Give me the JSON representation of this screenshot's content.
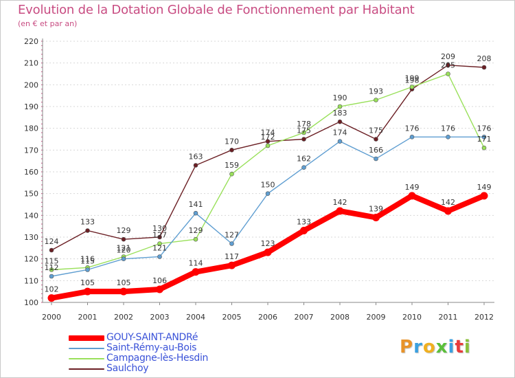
{
  "header": {
    "title": "Evolution de la Dotation Globale de Fonctionnement par Habitant",
    "subtitle": "(en € et par an)"
  },
  "logo": {
    "letters": [
      "P",
      "r",
      "o",
      "x",
      "i",
      "t",
      "i"
    ],
    "colors": [
      "#e8932a",
      "#3aa0e0",
      "#f0b020",
      "#5ac03a",
      "#3aa0e0",
      "#e83a3a",
      "#8ac03a"
    ]
  },
  "chart_data": {
    "type": "line",
    "title": "Evolution de la Dotation Globale de Fonctionnement par Habitant",
    "subtitle": "(en € et par an)",
    "xlabel": "",
    "ylabel": "",
    "ylim": [
      100,
      220
    ],
    "yticks": [
      100,
      110,
      120,
      130,
      140,
      150,
      160,
      170,
      180,
      190,
      200,
      210,
      220
    ],
    "grid": true,
    "categories": [
      "2000",
      "2001",
      "2002",
      "2003",
      "2004",
      "2005",
      "2006",
      "2007",
      "2008",
      "2009",
      "2010",
      "2011",
      "2012"
    ],
    "series": [
      {
        "name": "GOUY-SAINT-ANDRé",
        "color": "#ff0000",
        "values": [
          102,
          105,
          105,
          106,
          114,
          117,
          123,
          133,
          142,
          139,
          149,
          142,
          149
        ]
      },
      {
        "name": "Saint-Rémy-au-Bois",
        "color": "#5f9ed1",
        "values": [
          112,
          115,
          120,
          121,
          141,
          127,
          150,
          162,
          174,
          166,
          176,
          176,
          176
        ]
      },
      {
        "name": "Campagne-lès-Hesdin",
        "color": "#99e05a",
        "values": [
          115,
          116,
          121,
          127,
          129,
          159,
          172,
          178,
          190,
          193,
          199,
          205,
          171
        ]
      },
      {
        "name": "Saulchoy",
        "color": "#6b1f24",
        "values": [
          124,
          133,
          129,
          130,
          163,
          170,
          174,
          175,
          183,
          175,
          198,
          209,
          208
        ]
      }
    ]
  }
}
